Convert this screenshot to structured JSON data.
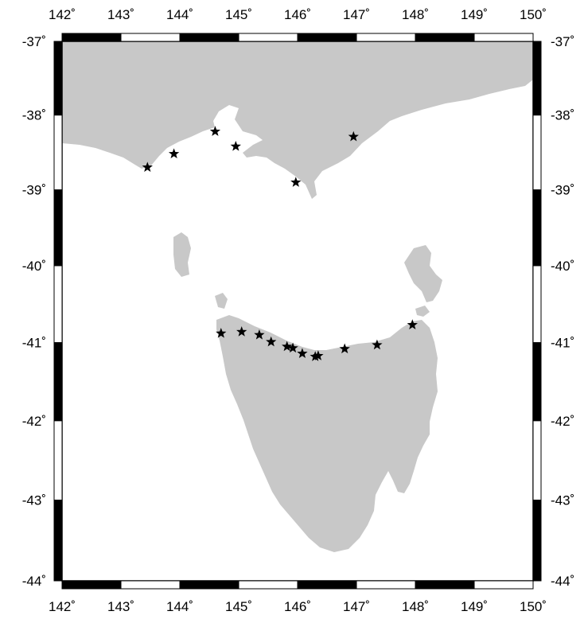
{
  "map": {
    "projection": "mercator",
    "lon_range": [
      142,
      150
    ],
    "lat_range": [
      -44,
      -37
    ],
    "frame_style": "alternating-black-white-ticks",
    "land_color": "#c8c8c8",
    "water_color": "#ffffff",
    "marker_symbol": "star",
    "marker_color": "#000000",
    "lon_tick_labels": [
      {
        "value": 142,
        "label": "142˚"
      },
      {
        "value": 143,
        "label": "143˚"
      },
      {
        "value": 144,
        "label": "144˚"
      },
      {
        "value": 145,
        "label": "145˚"
      },
      {
        "value": 146,
        "label": "146˚"
      },
      {
        "value": 147,
        "label": "147˚"
      },
      {
        "value": 148,
        "label": "148˚"
      },
      {
        "value": 149,
        "label": "149˚"
      },
      {
        "value": 150,
        "label": "150˚"
      }
    ],
    "lat_tick_labels": [
      {
        "value": -37,
        "label": "-37˚"
      },
      {
        "value": -38,
        "label": "-38˚"
      },
      {
        "value": -39,
        "label": "-39˚"
      },
      {
        "value": -40,
        "label": "-40˚"
      },
      {
        "value": -41,
        "label": "-41˚"
      },
      {
        "value": -42,
        "label": "-42˚"
      },
      {
        "value": -43,
        "label": "-43˚"
      },
      {
        "value": -44,
        "label": "-44˚"
      }
    ],
    "stations": [
      {
        "lon": 143.45,
        "lat": -38.7
      },
      {
        "lon": 143.9,
        "lat": -38.52
      },
      {
        "lon": 144.6,
        "lat": -38.22
      },
      {
        "lon": 144.95,
        "lat": -38.42
      },
      {
        "lon": 145.97,
        "lat": -38.9
      },
      {
        "lon": 146.95,
        "lat": -38.29
      },
      {
        "lon": 144.7,
        "lat": -40.88
      },
      {
        "lon": 145.05,
        "lat": -40.86
      },
      {
        "lon": 145.35,
        "lat": -40.9
      },
      {
        "lon": 145.55,
        "lat": -40.99
      },
      {
        "lon": 145.82,
        "lat": -41.05
      },
      {
        "lon": 145.92,
        "lat": -41.07
      },
      {
        "lon": 146.08,
        "lat": -41.14
      },
      {
        "lon": 146.3,
        "lat": -41.18
      },
      {
        "lon": 146.35,
        "lat": -41.17
      },
      {
        "lon": 146.8,
        "lat": -41.08
      },
      {
        "lon": 147.35,
        "lat": -41.03
      },
      {
        "lon": 147.95,
        "lat": -40.77
      }
    ]
  }
}
